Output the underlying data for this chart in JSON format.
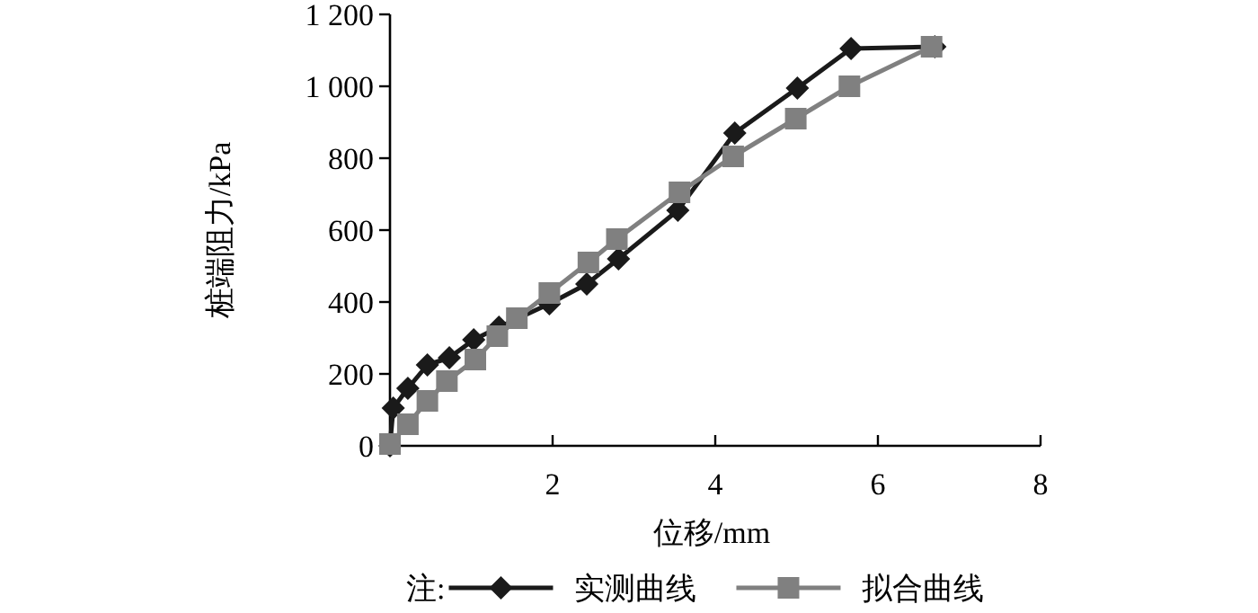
{
  "chart_data": {
    "type": "line",
    "xlabel": "位移/mm",
    "ylabel": "桩端阻力/kPa",
    "legend_title": "注:",
    "legend": "bottom",
    "grid": false,
    "xlim": [
      0,
      8
    ],
    "xticks": [
      2,
      4,
      6,
      8
    ],
    "ylim": [
      0,
      1200
    ],
    "yticks": [
      0,
      200,
      400,
      600,
      800,
      {
        "value": 1000,
        "label": "1 000"
      },
      {
        "value": 1200,
        "label": "1 200"
      }
    ],
    "series": [
      {
        "name": "实测曲线",
        "color": "#1a1a1a",
        "marker": "diamond",
        "x": [
          0,
          0.04,
          0.22,
          0.46,
          0.73,
          1.03,
          1.34,
          1.96,
          2.42,
          2.81,
          3.54,
          4.24,
          5.01,
          5.67,
          6.7
        ],
        "values": [
          0,
          105,
          160,
          225,
          245,
          295,
          330,
          395,
          450,
          520,
          655,
          870,
          995,
          1105,
          1110
        ]
      },
      {
        "name": "拟合曲线",
        "color": "#808080",
        "marker": "square",
        "x": [
          0,
          0.22,
          0.46,
          0.7,
          1.05,
          1.32,
          1.56,
          1.96,
          2.44,
          2.79,
          3.56,
          4.22,
          4.99,
          5.65,
          6.66
        ],
        "values": [
          5,
          60,
          125,
          180,
          240,
          305,
          355,
          425,
          510,
          575,
          705,
          805,
          910,
          1000,
          1110
        ]
      }
    ]
  }
}
